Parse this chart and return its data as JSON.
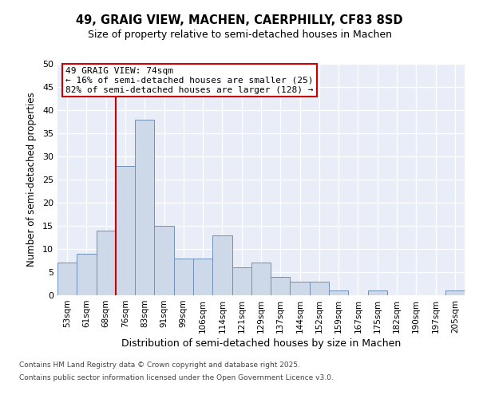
{
  "title1": "49, GRAIG VIEW, MACHEN, CAERPHILLY, CF83 8SD",
  "title2": "Size of property relative to semi-detached houses in Machen",
  "xlabel": "Distribution of semi-detached houses by size in Machen",
  "ylabel": "Number of semi-detached properties",
  "categories": [
    "53sqm",
    "61sqm",
    "68sqm",
    "76sqm",
    "83sqm",
    "91sqm",
    "99sqm",
    "106sqm",
    "114sqm",
    "121sqm",
    "129sqm",
    "137sqm",
    "144sqm",
    "152sqm",
    "159sqm",
    "167sqm",
    "175sqm",
    "182sqm",
    "190sqm",
    "197sqm",
    "205sqm"
  ],
  "values": [
    7,
    9,
    14,
    28,
    38,
    15,
    8,
    8,
    13,
    6,
    7,
    4,
    3,
    3,
    1,
    0,
    1,
    0,
    0,
    0,
    1
  ],
  "bar_color": "#cdd8e8",
  "bar_edge_color": "#7090b8",
  "vline_color": "#cc0000",
  "vline_pos": 2.5,
  "annotation_title": "49 GRAIG VIEW: 74sqm",
  "annotation_line1": "← 16% of semi-detached houses are smaller (25)",
  "annotation_line2": "82% of semi-detached houses are larger (128) →",
  "annotation_box_color": "#cc0000",
  "ylim": [
    0,
    50
  ],
  "yticks": [
    0,
    5,
    10,
    15,
    20,
    25,
    30,
    35,
    40,
    45,
    50
  ],
  "footer1": "Contains HM Land Registry data © Crown copyright and database right 2025.",
  "footer2": "Contains public sector information licensed under the Open Government Licence v3.0.",
  "fig_bg_color": "#ffffff",
  "plot_bg_color": "#e8edf8"
}
